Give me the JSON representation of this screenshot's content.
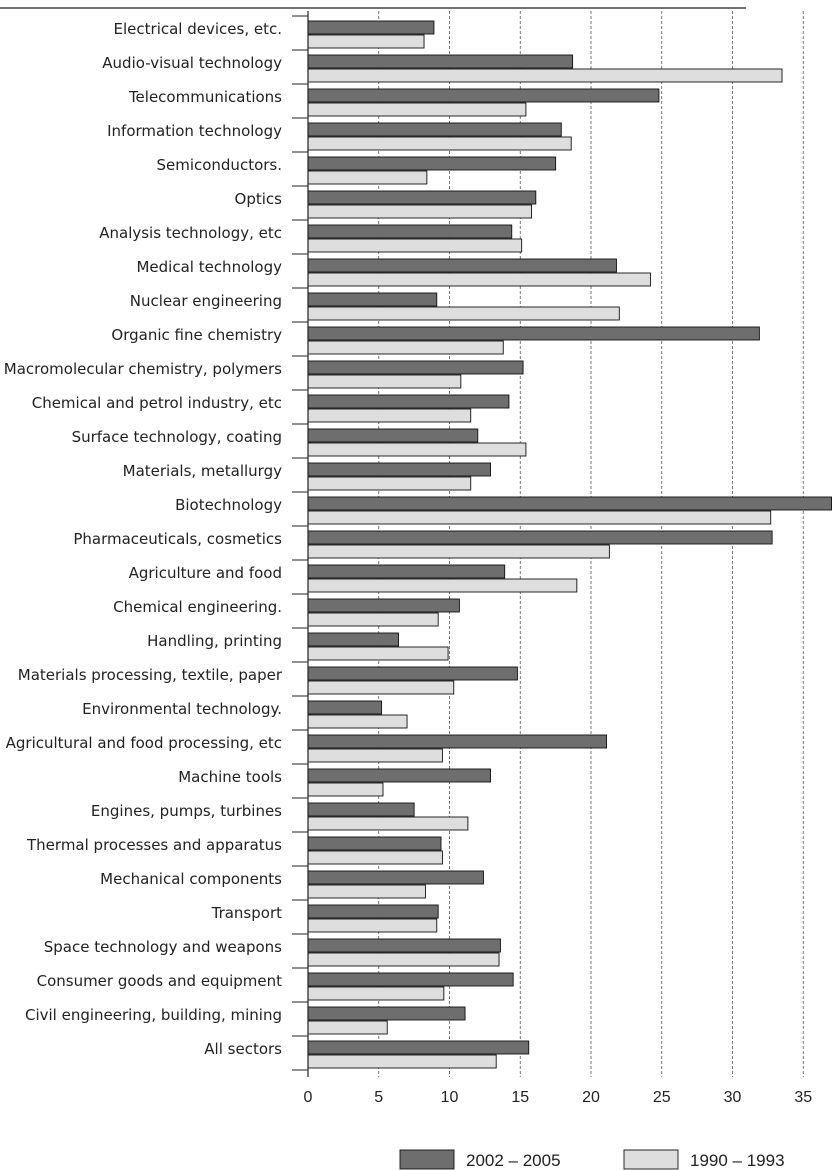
{
  "chart_data": {
    "type": "bar",
    "orientation": "horizontal",
    "title": "",
    "xlabel": "",
    "ylabel": "",
    "xlim": [
      0,
      37
    ],
    "xticks": [
      0,
      5,
      10,
      15,
      20,
      25,
      30,
      35
    ],
    "grid": "vertical dashed",
    "legend_position": "bottom-right",
    "categories": [
      "Electrical devices, etc.",
      "Audio-visual technology",
      "Telecommunications",
      "Information technology",
      "Semiconductors.",
      "Optics",
      "Analysis technology, etc",
      "Medical technology",
      "Nuclear engineering",
      "Organic fine chemistry",
      "Macromolecular chemistry, polymers",
      "Chemical and petrol industry, etc",
      "Surface technology, coating",
      "Materials, metallurgy",
      "Biotechnology",
      "Pharmaceuticals, cosmetics",
      "Agriculture and food",
      "Chemical engineering.",
      "Handling, printing",
      "Materials processing, textile, paper",
      "Environmental technology.",
      "Agricultural and food processing, etc",
      "Machine tools",
      "Engines, pumps, turbines",
      "Thermal processes and apparatus",
      "Mechanical components",
      "Transport",
      "Space technology and weapons",
      "Consumer goods and equipment",
      "Civil engineering, building, mining",
      "All sectors"
    ],
    "series": [
      {
        "name": "2002 – 2005",
        "color": "#6e6e6e",
        "values": [
          8.9,
          18.7,
          24.8,
          17.9,
          17.5,
          16.1,
          14.4,
          21.8,
          9.1,
          31.9,
          15.2,
          14.2,
          12.0,
          12.9,
          37.0,
          32.8,
          13.9,
          10.7,
          6.4,
          14.8,
          5.2,
          21.1,
          12.9,
          7.5,
          9.4,
          12.4,
          9.2,
          13.6,
          14.5,
          11.1,
          15.6
        ]
      },
      {
        "name": "1990 – 1993",
        "color": "#dedede",
        "values": [
          8.2,
          33.5,
          15.4,
          18.6,
          8.4,
          15.8,
          15.1,
          24.2,
          22.0,
          13.8,
          10.8,
          11.5,
          15.4,
          11.5,
          32.7,
          21.3,
          19.0,
          9.2,
          9.9,
          10.3,
          7.0,
          9.5,
          5.3,
          11.3,
          9.5,
          8.3,
          9.1,
          13.5,
          9.6,
          5.6,
          13.3
        ]
      }
    ]
  }
}
